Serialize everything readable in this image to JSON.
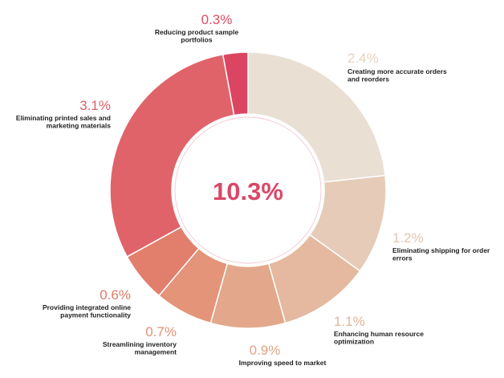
{
  "chart_data": {
    "type": "pie",
    "variant": "donut",
    "total_label": "10.3%",
    "slices": [
      {
        "pct_label": "2.4%",
        "value": 2.4,
        "label_lines": [
          "Creating more accurate orders",
          "and reorders"
        ],
        "color": "#e9dfd3",
        "text_color": "#e8d2c0"
      },
      {
        "pct_label": "1.2%",
        "value": 1.2,
        "label_lines": [
          "Eliminating shipping for order",
          "errors"
        ],
        "color": "#e6ccb8",
        "text_color": "#e6c5ad"
      },
      {
        "pct_label": "1.1%",
        "value": 1.1,
        "label_lines": [
          "Enhancing human resource",
          "optimization"
        ],
        "color": "#e4b99f",
        "text_color": "#e2b497"
      },
      {
        "pct_label": "0.9%",
        "value": 0.9,
        "label_lines": [
          "Improving speed to market"
        ],
        "color": "#e3a88b",
        "text_color": "#e2a386"
      },
      {
        "pct_label": "0.7%",
        "value": 0.7,
        "label_lines": [
          "Streamlining inventory",
          "management"
        ],
        "color": "#e49479",
        "text_color": "#e39074"
      },
      {
        "pct_label": "0.6%",
        "value": 0.6,
        "label_lines": [
          "Providing integrated online",
          "payment functionality"
        ],
        "color": "#e27e6c",
        "text_color": "#e17a65"
      },
      {
        "pct_label": "3.1%",
        "value": 3.1,
        "label_lines": [
          "Eliminating printed sales and",
          "marketing materials"
        ],
        "color": "#e0636a",
        "text_color": "#df6066"
      },
      {
        "pct_label": "0.3%",
        "value": 0.3,
        "label_lines": [
          "Reducing product sample",
          "portfolios"
        ],
        "color": "#dc4562",
        "text_color": "#de4c63"
      }
    ],
    "inner_ring_color": "#f2c7cf",
    "center_color": "#d94866"
  }
}
